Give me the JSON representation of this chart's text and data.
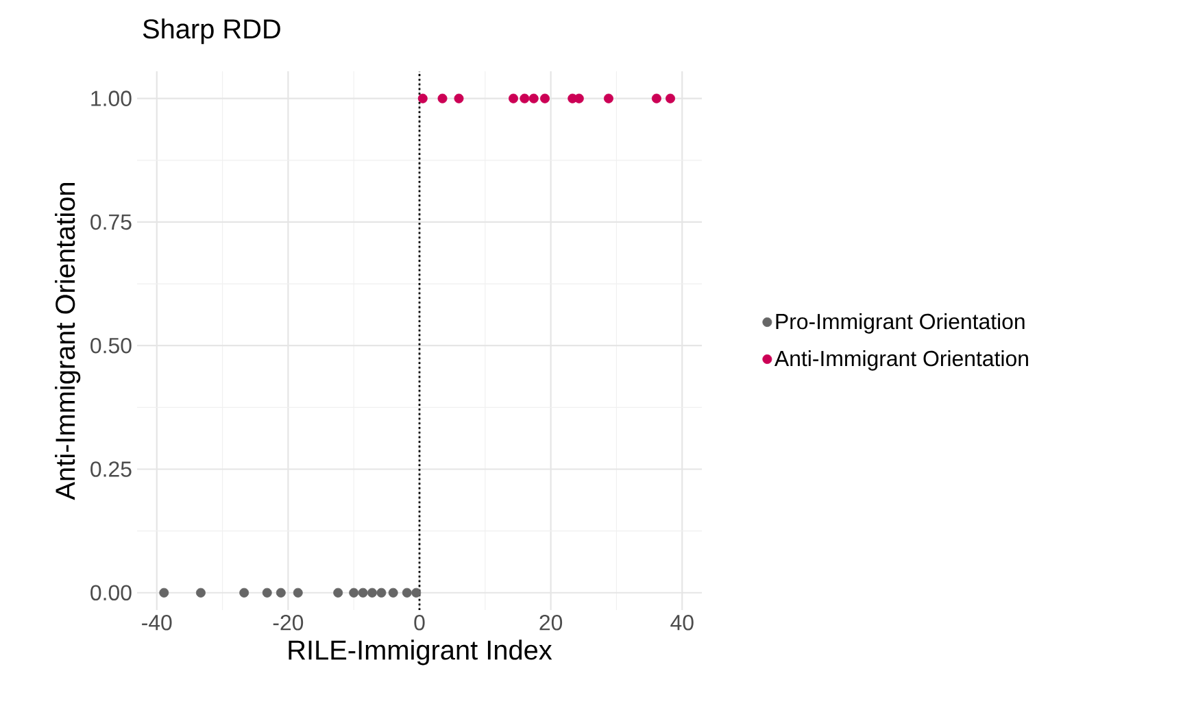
{
  "chart_data": {
    "type": "scatter",
    "title": "Sharp RDD",
    "xlabel": "RILE-Immigrant Index",
    "ylabel": "Anti-Immigrant Orientation",
    "series": [
      {
        "name": "Pro-Immigrant Orientation",
        "color": "#666666",
        "x": [
          -38.9,
          -33.3,
          -26.7,
          -23.2,
          -21.1,
          -18.5,
          -12.4,
          -10.0,
          -8.6,
          -7.2,
          -5.8,
          -4.0,
          -1.9,
          -0.5
        ],
        "values": [
          0,
          0,
          0,
          0,
          0,
          0,
          0,
          0,
          0,
          0,
          0,
          0,
          0,
          0
        ]
      },
      {
        "name": "Anti-Immigrant Orientation",
        "color": "#cc0055",
        "x": [
          0.5,
          3.5,
          6.0,
          14.3,
          16.0,
          17.4,
          19.1,
          23.3,
          24.3,
          28.8,
          36.1,
          38.2
        ],
        "values": [
          1,
          1,
          1,
          1,
          1,
          1,
          1,
          1,
          1,
          1,
          1,
          1
        ]
      }
    ],
    "xlim": [
      -43,
      43
    ],
    "ylim": [
      -0.035,
      1.055
    ],
    "xticks": [
      -40,
      -20,
      0,
      20,
      40
    ],
    "yticks": [
      {
        "value": 0,
        "label": "0.00"
      },
      {
        "value": 0.25,
        "label": "0.25"
      },
      {
        "value": 0.5,
        "label": "0.50"
      },
      {
        "value": 0.75,
        "label": "0.75"
      },
      {
        "value": 1,
        "label": "1.00"
      }
    ],
    "ref_lines": [
      {
        "axis": "x",
        "value": 0,
        "line_style": "dotted",
        "color": "#000000"
      }
    ],
    "grid": true,
    "legend": "right",
    "marker": "circle"
  }
}
